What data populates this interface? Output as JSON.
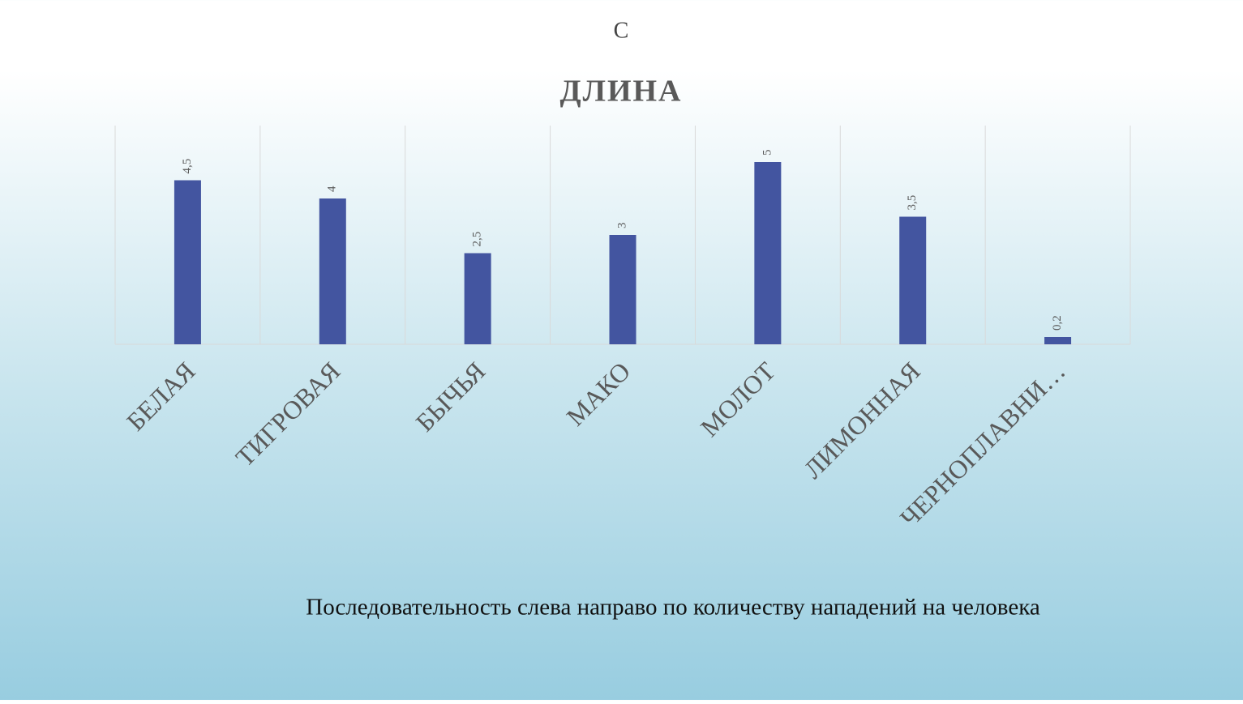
{
  "header": "С",
  "caption": "Последовательность слева направо по количеству нападений на человека",
  "chart_data": {
    "type": "bar",
    "title": "ДЛИНА",
    "categories": [
      "БЕЛАЯ",
      "ТИГРОВАЯ",
      "БЫЧЬЯ",
      "МАКО",
      "МОЛОТ",
      "ЛИМОННАЯ",
      "ЧЕРНОПЛАВНИ…"
    ],
    "values": [
      4.5,
      4,
      2.5,
      3,
      5,
      3.5,
      0.2
    ],
    "value_labels": [
      "4,5",
      "4",
      "2,5",
      "3",
      "5",
      "3,5",
      "0,2"
    ],
    "color": "#4355a0",
    "ylim": [
      0,
      6
    ]
  }
}
